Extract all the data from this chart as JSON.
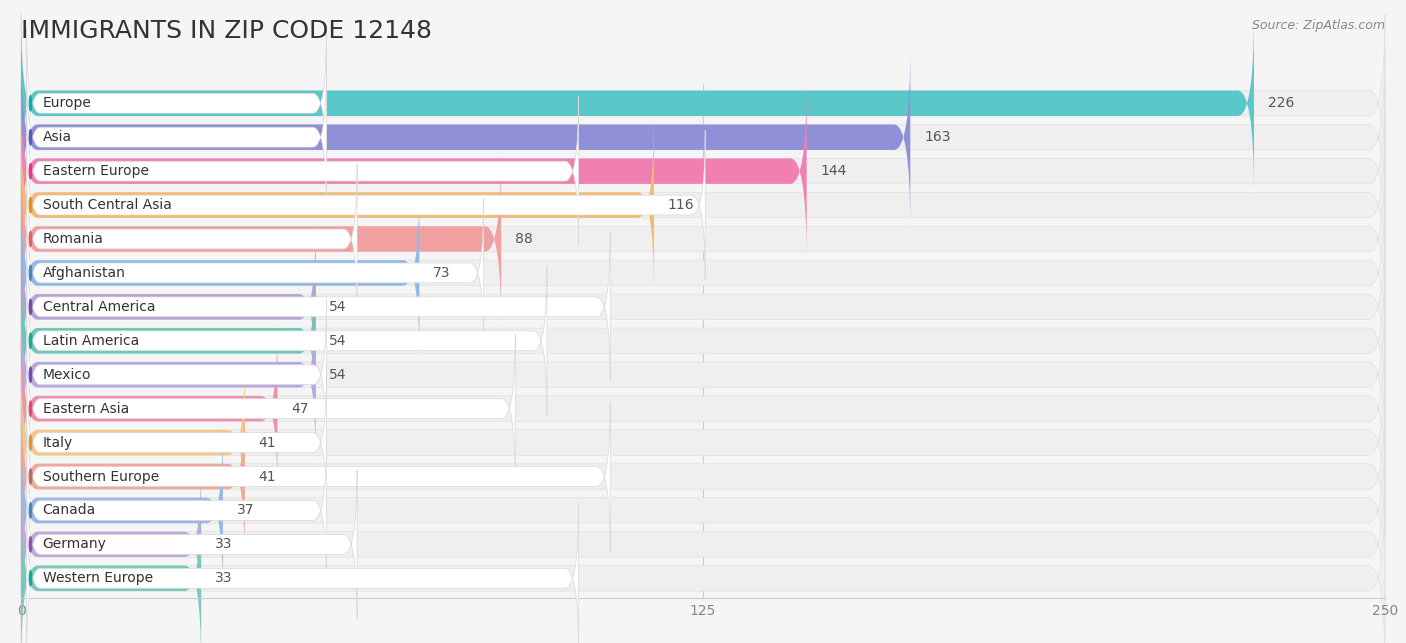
{
  "title": "IMMIGRANTS IN ZIP CODE 12148",
  "source": "Source: ZipAtlas.com",
  "categories": [
    "Europe",
    "Asia",
    "Eastern Europe",
    "South Central Asia",
    "Romania",
    "Afghanistan",
    "Central America",
    "Latin America",
    "Mexico",
    "Eastern Asia",
    "Italy",
    "Southern Europe",
    "Canada",
    "Germany",
    "Western Europe"
  ],
  "values": [
    226,
    163,
    144,
    116,
    88,
    73,
    54,
    54,
    54,
    47,
    41,
    41,
    37,
    33,
    33
  ],
  "bar_colors": [
    "#5ac8c8",
    "#9090d8",
    "#f080b0",
    "#f5b870",
    "#f0a0a0",
    "#90b8e8",
    "#b8a0d8",
    "#68c8b8",
    "#b8a8e0",
    "#f090b0",
    "#f5c888",
    "#f0a898",
    "#98b8e8",
    "#c0a8d8",
    "#78c8c0"
  ],
  "icon_colors": [
    "#1aacac",
    "#5858c0",
    "#e03888",
    "#e89028",
    "#d86868",
    "#4888c0",
    "#7848a8",
    "#18a898",
    "#7848c0",
    "#e04878",
    "#d89840",
    "#c06860",
    "#4888c0",
    "#8858b0",
    "#18a898"
  ],
  "row_bg_color": "#f0f0f0",
  "background_color": "#f5f5f5",
  "xlim": [
    0,
    250
  ],
  "xticks": [
    0,
    125,
    250
  ],
  "title_fontsize": 18,
  "label_fontsize": 10,
  "value_fontsize": 10
}
